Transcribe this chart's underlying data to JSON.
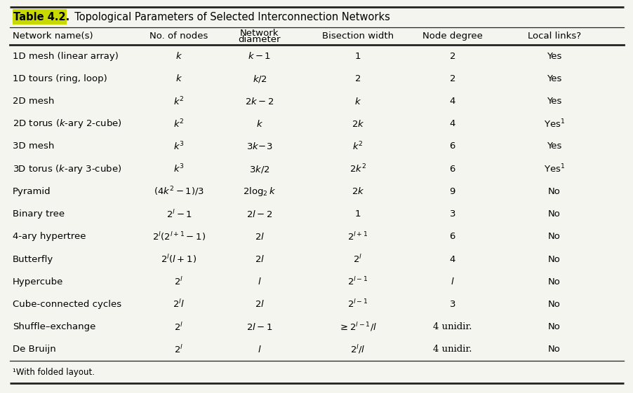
{
  "title_bold": "Table 4.2.",
  "title_normal": "  Topological Parameters of Selected Interconnection Networks",
  "title_bg_color": "#c8d900",
  "footnote": "¹With folded layout.",
  "col_headers_line1": [
    "Network name(s)",
    "No. of nodes",
    "Network",
    "Bisection width",
    "Node degree",
    "Local links?"
  ],
  "col_headers_line2": [
    "",
    "",
    "diameter",
    "",
    "",
    ""
  ],
  "network_names": [
    "1D mesh (linear array)",
    "1D tours (ring, loop)",
    "2D mesh",
    "2D torus ($k$-ary 2-cube)",
    "3D mesh",
    "3D torus ($k$-ary 3-cube)",
    "Pyramid",
    "Binary tree",
    "4-ary hypertree",
    "Butterfly",
    "Hypercube",
    "Cube-connected cycles",
    "Shuffle–exchange",
    "De Bruijn"
  ],
  "col_nodes": [
    "$k$",
    "$k$",
    "$k^2$",
    "$k^2$",
    "$k^3$",
    "$k^3$",
    "$(4k^2-1)/3$",
    "$2^l-1$",
    "$2^l(2^{l+1}-1)$",
    "$2^l(l+1)$",
    "$2^l$",
    "$2^l l$",
    "$2^l$",
    "$2^l$"
  ],
  "col_diam": [
    "$k-1$",
    "$k/2$",
    "$2k-2$",
    "$k$",
    "$3k\\!-\\!3$",
    "$3k/2$",
    "$2\\log_2 k$",
    "$2l-2$",
    "$2l$",
    "$2l$",
    "$l$",
    "$2l$",
    "$2l-1$",
    "$l$"
  ],
  "col_bisec": [
    "$1$",
    "$2$",
    "$k$",
    "$2k$",
    "$k^2$",
    "$2k^2$",
    "$2k$",
    "$1$",
    "$2^{l+1}$",
    "$2^l$",
    "$2^{l-1}$",
    "$2^{l-1}$",
    "$\\geq 2^{l-1}/l$",
    "$2^l/l$"
  ],
  "col_degree": [
    "$2$",
    "$2$",
    "$4$",
    "$4$",
    "$6$",
    "$6$",
    "$9$",
    "$3$",
    "$6$",
    "$4$",
    "$l$",
    "$3$",
    "4 unidir.",
    "4 unidir."
  ],
  "col_local": [
    "Yes",
    "Yes",
    "Yes",
    "Yes$^1$",
    "Yes",
    "Yes$^1$",
    "No",
    "No",
    "No",
    "No",
    "No",
    "No",
    "No",
    "No"
  ],
  "bg_color": "#f5f5f0",
  "line_color": "#222222",
  "text_color": "#111111"
}
